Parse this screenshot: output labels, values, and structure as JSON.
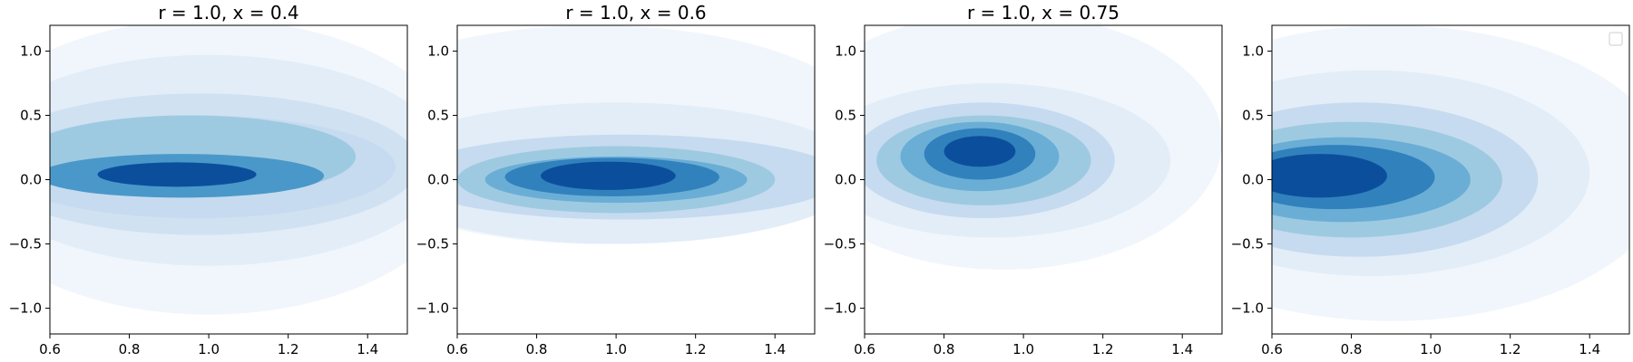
{
  "chart_data": [
    {
      "type": "contour",
      "title": "r = 1.0, x = 0.4",
      "xlim": [
        0.6,
        1.5
      ],
      "ylim": [
        -1.2,
        1.2
      ],
      "xticks": [
        "0.6",
        "0.8",
        "1.0",
        "1.2",
        "1.4"
      ],
      "yticks": [
        "−1.0",
        "−0.5",
        "0.0",
        "0.5",
        "1.0"
      ],
      "colormap": "Blues",
      "levels": [
        {
          "level": 1,
          "color": "#f1f6fc",
          "cx": 1.0,
          "cy": 0.1,
          "rx": 0.65,
          "ry": 1.15
        },
        {
          "level": 2,
          "color": "#e2edf8",
          "cx": 1.0,
          "cy": 0.15,
          "rx": 0.6,
          "ry": 0.82
        },
        {
          "level": 3,
          "color": "#d0e1f2",
          "cx": 0.98,
          "cy": 0.12,
          "rx": 0.55,
          "ry": 0.55
        },
        {
          "level": 4,
          "color": "#c6dbef",
          "cx": 0.97,
          "cy": 0.1,
          "rx": 0.5,
          "ry": 0.4
        },
        {
          "level": 5,
          "color": "#9ecae1",
          "cx": 0.95,
          "cy": 0.18,
          "rx": 0.42,
          "ry": 0.32
        },
        {
          "level": 6,
          "color": "#4a98c9",
          "cx": 0.93,
          "cy": 0.03,
          "rx": 0.36,
          "ry": 0.17
        },
        {
          "level": 7,
          "color": "#0b4f9c",
          "cx": 0.92,
          "cy": 0.04,
          "rx": 0.2,
          "ry": 0.095
        }
      ]
    },
    {
      "type": "contour",
      "title": "r = 1.0, x = 0.6",
      "xlim": [
        0.6,
        1.5
      ],
      "ylim": [
        -1.2,
        1.2
      ],
      "xticks": [
        "0.6",
        "0.8",
        "1.0",
        "1.2",
        "1.4"
      ],
      "yticks": [
        "−1.0",
        "−0.5",
        "0.0",
        "0.5",
        "1.0"
      ],
      "colormap": "Blues",
      "levels": [
        {
          "level": 1,
          "color": "#f1f6fc",
          "cx": 0.95,
          "cy": 0.35,
          "rx": 0.7,
          "ry": 0.85
        },
        {
          "level": 2,
          "color": "#e2edf8",
          "cx": 1.0,
          "cy": 0.05,
          "rx": 0.62,
          "ry": 0.55
        },
        {
          "level": 3,
          "color": "#c6dbef",
          "cx": 1.02,
          "cy": 0.02,
          "rx": 0.55,
          "ry": 0.33
        },
        {
          "level": 4,
          "color": "#9ecae1",
          "cx": 1.0,
          "cy": 0.0,
          "rx": 0.4,
          "ry": 0.26
        },
        {
          "level": 5,
          "color": "#6aaed6",
          "cx": 1.0,
          "cy": 0.0,
          "rx": 0.33,
          "ry": 0.18
        },
        {
          "level": 6,
          "color": "#3181bd",
          "cx": 0.99,
          "cy": 0.02,
          "rx": 0.27,
          "ry": 0.15
        },
        {
          "level": 7,
          "color": "#0b4f9c",
          "cx": 0.98,
          "cy": 0.03,
          "rx": 0.17,
          "ry": 0.11
        }
      ]
    },
    {
      "type": "contour",
      "title": "r = 1.0, x = 0.75",
      "xlim": [
        0.6,
        1.5
      ],
      "ylim": [
        -1.2,
        1.2
      ],
      "xticks": [
        "0.6",
        "0.8",
        "1.0",
        "1.2",
        "1.4"
      ],
      "yticks": [
        "−1.0",
        "−0.5",
        "0.0",
        "0.5",
        "1.0"
      ],
      "colormap": "Blues",
      "levels": [
        {
          "level": 1,
          "color": "#f1f6fc",
          "cx": 0.95,
          "cy": 0.3,
          "rx": 0.55,
          "ry": 1.0
        },
        {
          "level": 2,
          "color": "#e2edf8",
          "cx": 0.92,
          "cy": 0.15,
          "rx": 0.45,
          "ry": 0.6
        },
        {
          "level": 3,
          "color": "#c6dbef",
          "cx": 0.9,
          "cy": 0.15,
          "rx": 0.33,
          "ry": 0.45
        },
        {
          "level": 4,
          "color": "#9ecae1",
          "cx": 0.9,
          "cy": 0.15,
          "rx": 0.27,
          "ry": 0.35
        },
        {
          "level": 5,
          "color": "#6aaed6",
          "cx": 0.89,
          "cy": 0.18,
          "rx": 0.2,
          "ry": 0.27
        },
        {
          "level": 6,
          "color": "#3181bd",
          "cx": 0.89,
          "cy": 0.2,
          "rx": 0.14,
          "ry": 0.2
        },
        {
          "level": 7,
          "color": "#0b4f9c",
          "cx": 0.89,
          "cy": 0.22,
          "rx": 0.09,
          "ry": 0.12
        }
      ]
    },
    {
      "type": "contour",
      "title": "",
      "xlim": [
        0.6,
        1.5
      ],
      "ylim": [
        -1.2,
        1.2
      ],
      "xticks": [
        "0.6",
        "0.8",
        "1.0",
        "1.2",
        "1.4"
      ],
      "yticks": [
        "−1.0",
        "−0.5",
        "0.0",
        "0.5",
        "1.0"
      ],
      "colormap": "Blues",
      "legend": "top-right, empty",
      "levels": [
        {
          "level": 1,
          "color": "#f1f6fc",
          "cx": 0.9,
          "cy": 0.05,
          "rx": 0.7,
          "ry": 1.15
        },
        {
          "level": 2,
          "color": "#e2edf8",
          "cx": 0.85,
          "cy": 0.05,
          "rx": 0.55,
          "ry": 0.8
        },
        {
          "level": 3,
          "color": "#c6dbef",
          "cx": 0.82,
          "cy": 0.0,
          "rx": 0.45,
          "ry": 0.6
        },
        {
          "level": 4,
          "color": "#9ecae1",
          "cx": 0.8,
          "cy": 0.0,
          "rx": 0.38,
          "ry": 0.45
        },
        {
          "level": 5,
          "color": "#6aaed6",
          "cx": 0.78,
          "cy": 0.0,
          "rx": 0.32,
          "ry": 0.33
        },
        {
          "level": 6,
          "color": "#3181bd",
          "cx": 0.76,
          "cy": 0.02,
          "rx": 0.25,
          "ry": 0.25
        },
        {
          "level": 7,
          "color": "#0b4f9c",
          "cx": 0.72,
          "cy": 0.03,
          "rx": 0.17,
          "ry": 0.17
        }
      ]
    }
  ]
}
